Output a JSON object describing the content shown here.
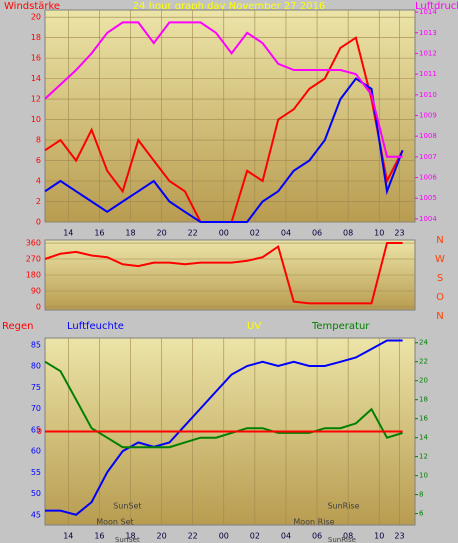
{
  "chart_data": [
    {
      "type": "line",
      "title": "24 hour graph day   November 27 2016",
      "y_label": "Windstärke",
      "y2_label": "Luftdruck",
      "x": [
        12.5,
        13.5,
        14.5,
        15.5,
        16.5,
        17.5,
        18.5,
        19.5,
        20.5,
        21.5,
        22.5,
        23.5,
        24.5,
        25.5,
        26.5,
        27.5,
        28.5,
        29.5,
        30.5,
        31.5,
        32.5,
        33.5,
        34.5,
        35.5
      ],
      "xlim": [
        12.5,
        36.3
      ],
      "xticks": [
        14,
        16,
        18,
        20,
        22,
        {
          "value": 24,
          "label": "00"
        },
        {
          "value": 26,
          "label": "02"
        },
        {
          "value": 28,
          "label": "04"
        },
        {
          "value": 30,
          "label": "06"
        },
        {
          "value": 32,
          "label": "08"
        },
        {
          "value": 34,
          "label": "10"
        },
        {
          "value": 35.3,
          "label": "23"
        }
      ],
      "ylim": [
        0,
        20.7
      ],
      "yticks": [
        0,
        2,
        4,
        6,
        8,
        10,
        12,
        14,
        16,
        18,
        20
      ],
      "y2lim": [
        1003.85,
        1014.1
      ],
      "y2ticks": [
        1004,
        1005,
        1006,
        1007,
        1008,
        1009,
        1010,
        1011,
        1012,
        1013,
        1014
      ],
      "grid": true,
      "series": [
        {
          "color": "#ff0000",
          "values": [
            7,
            8,
            6,
            9,
            5,
            3,
            8,
            6,
            4,
            3,
            0,
            0,
            0,
            5,
            4,
            10,
            11,
            13,
            14,
            17,
            18,
            12,
            4,
            7
          ]
        },
        {
          "color": "#0000ff",
          "values": [
            3,
            4,
            3,
            2,
            1,
            2,
            3,
            4,
            2,
            1,
            0,
            0,
            0,
            0,
            2,
            3,
            5,
            6,
            8,
            12,
            14,
            13,
            3,
            7
          ]
        },
        {
          "color": "#ff00ff",
          "axis": "y2",
          "values": [
            1009.8,
            1010.5,
            1011.2,
            1012,
            1013,
            1013.5,
            1013.5,
            1012.5,
            1013.5,
            1013.5,
            1013.5,
            1013,
            1012,
            1013,
            1012.5,
            1011.5,
            1011.2,
            1011.2,
            1011.2,
            1011.2,
            1011,
            1010,
            1007,
            1007
          ]
        }
      ]
    },
    {
      "type": "line",
      "x": [
        12.5,
        13.5,
        14.5,
        15.5,
        16.5,
        17.5,
        18.5,
        19.5,
        20.5,
        21.5,
        22.5,
        23.5,
        24.5,
        25.5,
        26.5,
        27.5,
        28.5,
        29.5,
        30.5,
        31.5,
        32.5,
        33.5,
        34.5,
        35.5
      ],
      "xlim": [
        12.5,
        36.3
      ],
      "ylim": [
        -17,
        377
      ],
      "yticks": [
        0,
        90,
        180,
        270,
        360
      ],
      "right_labels": [
        "N",
        "W",
        "S",
        "O",
        "N"
      ],
      "grid": true,
      "series": [
        {
          "color": "#ff0000",
          "values": [
            270,
            300,
            310,
            290,
            280,
            240,
            230,
            250,
            250,
            240,
            250,
            250,
            250,
            260,
            280,
            340,
            30,
            20,
            20,
            20,
            20,
            20,
            360,
            360
          ]
        }
      ]
    },
    {
      "type": "line",
      "rain_label": "Regen",
      "y_label": "Luftfeuchte",
      "uv_label": "UV",
      "y2_label": "Temperatur",
      "x": [
        12.5,
        13.5,
        14.5,
        15.5,
        16.5,
        17.5,
        18.5,
        19.5,
        20.5,
        21.5,
        22.5,
        23.5,
        24.5,
        25.5,
        26.5,
        27.5,
        28.5,
        29.5,
        30.5,
        31.5,
        32.5,
        33.5,
        34.5,
        35.5
      ],
      "xlim": [
        12.5,
        36.3
      ],
      "xticks": [
        14,
        16,
        18,
        20,
        22,
        {
          "value": 24,
          "label": "00"
        },
        {
          "value": 26,
          "label": "02"
        },
        {
          "value": 28,
          "label": "04"
        },
        {
          "value": 30,
          "label": "06"
        },
        {
          "value": 32,
          "label": "08"
        },
        {
          "value": 34,
          "label": "10"
        },
        {
          "value": 35.3,
          "label": "23"
        }
      ],
      "ylim": [
        42.6,
        86.6
      ],
      "yticks": [
        45,
        50,
        55,
        60,
        65,
        70,
        75,
        80,
        85
      ],
      "y2lim": [
        4.8,
        24.5
      ],
      "y2ticks": [
        6,
        8,
        10,
        12,
        14,
        16,
        18,
        20,
        22,
        24
      ],
      "y3lim": [
        -1,
        1
      ],
      "y3ticks": [
        0
      ],
      "series": [
        {
          "color": "#0000ff",
          "values": [
            46,
            46,
            45,
            48,
            55,
            60,
            62,
            61,
            62,
            66,
            70,
            74,
            78,
            80,
            81,
            80,
            81,
            80,
            80,
            81,
            82,
            84,
            86,
            86
          ]
        },
        {
          "color": "#008000",
          "axis": "y2",
          "values": [
            22,
            21,
            18,
            15,
            14,
            13,
            13,
            13,
            13,
            13.5,
            14,
            14,
            14.5,
            15,
            15,
            14.5,
            14.5,
            14.5,
            15,
            15,
            15.5,
            17,
            14,
            14.5
          ]
        },
        {
          "color": "#ff0000",
          "axis": "y3",
          "values": [
            0,
            0,
            0,
            0,
            0,
            0,
            0,
            0,
            0,
            0,
            0,
            0,
            0,
            0,
            0,
            0,
            0,
            0,
            0,
            0,
            0,
            0,
            0,
            0
          ]
        }
      ],
      "annotations": [
        {
          "text": "SunSet",
          "x": 17.8
        },
        {
          "text": "SunRise",
          "x": 31.7
        },
        {
          "text": "Moon Set",
          "x": 17
        },
        {
          "text": "Moon Rise",
          "x": 29.8
        }
      ],
      "x_annotations": [
        {
          "text": "SunSet",
          "x": 17.8
        },
        {
          "text": "SunRise",
          "x": 31.6
        }
      ]
    }
  ]
}
